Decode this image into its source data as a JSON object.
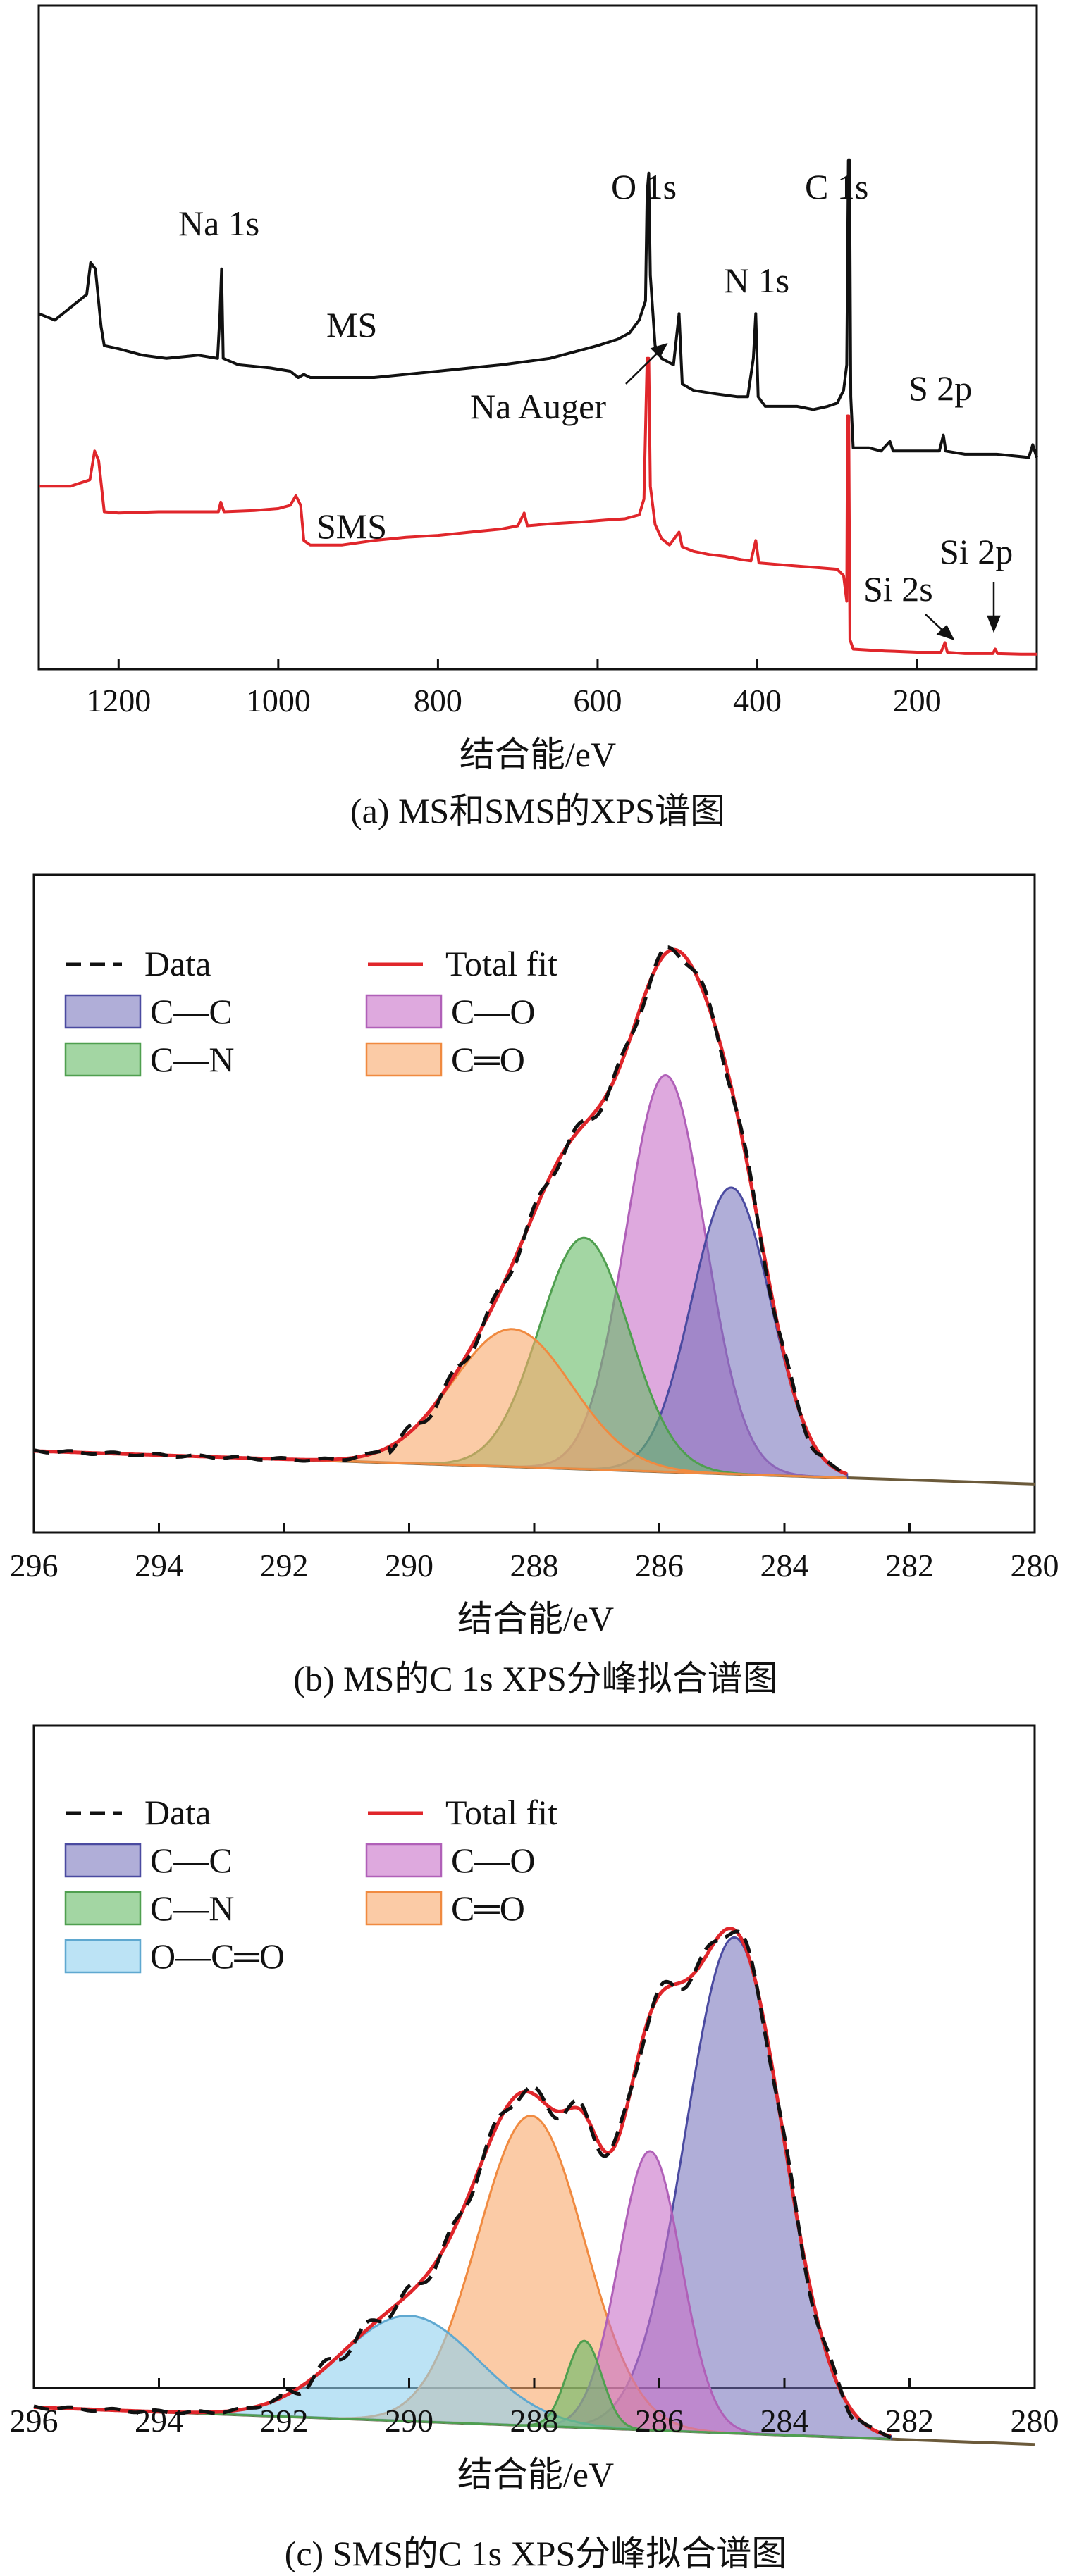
{
  "chart_data": [
    {
      "id": "a",
      "type": "line",
      "caption": "(a) MS和SMS的XPS谱图",
      "xlabel": "结合能/eV",
      "xlim": [
        1300,
        50
      ],
      "xticks": [
        1200,
        1000,
        800,
        600,
        400,
        200
      ],
      "series": [
        {
          "name": "MS",
          "color": "#111111",
          "points": [
            [
              1300,
              38
            ],
            [
              1280,
              37
            ],
            [
              1260,
              39
            ],
            [
              1240,
              41
            ],
            [
              1235,
              46
            ],
            [
              1229,
              45
            ],
            [
              1222,
              36
            ],
            [
              1218,
              33
            ],
            [
              1200,
              32.5
            ],
            [
              1170,
              31.5
            ],
            [
              1140,
              31
            ],
            [
              1100,
              31.5
            ],
            [
              1076,
              31
            ],
            [
              1073,
              38
            ],
            [
              1071,
              45
            ],
            [
              1069,
              31
            ],
            [
              1050,
              30
            ],
            [
              1010,
              29.5
            ],
            [
              985,
              29
            ],
            [
              975,
              28
            ],
            [
              968,
              28.5
            ],
            [
              960,
              28
            ],
            [
              920,
              28
            ],
            [
              880,
              28
            ],
            [
              840,
              28.5
            ],
            [
              800,
              29
            ],
            [
              760,
              29.5
            ],
            [
              720,
              30
            ],
            [
              690,
              30.5
            ],
            [
              660,
              31
            ],
            [
              630,
              32
            ],
            [
              600,
              33
            ],
            [
              575,
              34
            ],
            [
              560,
              35
            ],
            [
              548,
              37
            ],
            [
              540,
              40
            ],
            [
              538,
              57
            ],
            [
              536,
              60
            ],
            [
              534,
              44
            ],
            [
              528,
              33
            ],
            [
              520,
              31
            ],
            [
              505,
              30
            ],
            [
              498,
              38
            ],
            [
              494,
              27
            ],
            [
              480,
              26
            ],
            [
              455,
              25.5
            ],
            [
              425,
              25
            ],
            [
              412,
              25
            ],
            [
              405,
              31
            ],
            [
              402,
              38
            ],
            [
              399,
              25
            ],
            [
              390,
              23.5
            ],
            [
              370,
              23.5
            ],
            [
              350,
              23.5
            ],
            [
              330,
              23
            ],
            [
              312,
              23.5
            ],
            [
              300,
              24
            ],
            [
              292,
              26
            ],
            [
              288,
              30
            ],
            [
              286,
              62
            ],
            [
              284.5,
              62
            ],
            [
              283,
              25
            ],
            [
              280,
              17
            ],
            [
              260,
              17
            ],
            [
              245,
              16.5
            ],
            [
              234,
              18
            ],
            [
              230,
              16.5
            ],
            [
              200,
              16.5
            ],
            [
              172,
              16.5
            ],
            [
              167,
              19
            ],
            [
              164,
              16.5
            ],
            [
              140,
              16
            ],
            [
              100,
              16
            ],
            [
              60,
              15.5
            ],
            [
              55,
              17.5
            ],
            [
              50,
              15.5
            ]
          ]
        },
        {
          "name": "SMS",
          "color": "#e0262b",
          "points": [
            [
              1300,
              11
            ],
            [
              1260,
              11
            ],
            [
              1236,
              12
            ],
            [
              1230,
              16.5
            ],
            [
              1225,
              15
            ],
            [
              1218,
              7
            ],
            [
              1200,
              6.8
            ],
            [
              1150,
              7
            ],
            [
              1100,
              7
            ],
            [
              1075,
              7
            ],
            [
              1072,
              8.5
            ],
            [
              1068,
              7
            ],
            [
              1030,
              7.2
            ],
            [
              1000,
              7.5
            ],
            [
              985,
              8
            ],
            [
              978,
              9.5
            ],
            [
              972,
              8
            ],
            [
              968,
              2.5
            ],
            [
              960,
              1.8
            ],
            [
              920,
              1.8
            ],
            [
              880,
              2.5
            ],
            [
              840,
              3
            ],
            [
              800,
              3.3
            ],
            [
              760,
              3.8
            ],
            [
              720,
              4.3
            ],
            [
              700,
              4.8
            ],
            [
              692,
              6.8
            ],
            [
              688,
              4.8
            ],
            [
              660,
              5.1
            ],
            [
              620,
              5.4
            ],
            [
              590,
              5.7
            ],
            [
              566,
              5.9
            ],
            [
              548,
              6.5
            ],
            [
              542,
              9
            ],
            [
              538,
              31
            ],
            [
              536,
              31
            ],
            [
              534,
              11
            ],
            [
              528,
              5
            ],
            [
              520,
              2.8
            ],
            [
              510,
              1.8
            ],
            [
              498,
              3.8
            ],
            [
              494,
              1.5
            ],
            [
              480,
              0.8
            ],
            [
              460,
              0.3
            ],
            [
              440,
              0
            ],
            [
              420,
              -0.5
            ],
            [
              408,
              -0.7
            ],
            [
              402,
              2.5
            ],
            [
              398,
              -1
            ],
            [
              380,
              -1.2
            ],
            [
              350,
              -1.5
            ],
            [
              320,
              -1.8
            ],
            [
              300,
              -2
            ],
            [
              292,
              -3
            ],
            [
              288,
              -7
            ],
            [
              287,
              22
            ],
            [
              285.5,
              22
            ],
            [
              284,
              -13
            ],
            [
              280,
              -14.5
            ],
            [
              240,
              -14.8
            ],
            [
              200,
              -15
            ],
            [
              170,
              -15
            ],
            [
              165,
              -13.5
            ],
            [
              162,
              -15
            ],
            [
              140,
              -15.2
            ],
            [
              105,
              -15.2
            ],
            [
              102,
              -14.5
            ],
            [
              99,
              -15.2
            ],
            [
              70,
              -15.3
            ],
            [
              50,
              -15.3
            ]
          ]
        }
      ],
      "annotations": [
        "Na 1s",
        "MS",
        "O 1s",
        "C 1s",
        "N 1s",
        "Na Auger",
        "S 2p",
        "SMS",
        "Si 2p",
        "Si 2s"
      ]
    },
    {
      "id": "b",
      "type": "area",
      "caption": "(b) MS的C 1s XPS分峰拟合谱图",
      "xlabel": "结合能/eV",
      "xlim": [
        296,
        280
      ],
      "xticks": [
        296,
        294,
        292,
        290,
        288,
        286,
        284,
        282,
        280
      ],
      "ylim": [
        0,
        1.05
      ],
      "baseline": {
        "start": [
          296,
          0.05
        ],
        "end": [
          280,
          -0.01
        ]
      },
      "fit_range": [
        283.0,
        296
      ],
      "components": [
        {
          "name": "C—C",
          "center": 284.85,
          "height": 0.52,
          "sigma": 0.63,
          "fill": "#6f6bb8",
          "fillOpacity": 0.55,
          "stroke": "#4a4aa0"
        },
        {
          "name": "C—O",
          "center": 285.9,
          "height": 0.72,
          "sigma": 0.63,
          "fill": "#c870c8",
          "fillOpacity": 0.6,
          "stroke": "#b060b8"
        },
        {
          "name": "C—N",
          "center": 287.2,
          "height": 0.42,
          "sigma": 0.72,
          "fill": "#66bb66",
          "fillOpacity": 0.6,
          "stroke": "#4f9f4f"
        },
        {
          "name": "C═O",
          "center": 288.35,
          "height": 0.25,
          "sigma": 0.95,
          "fill": "#f8a86a",
          "fillOpacity": 0.6,
          "stroke": "#f08a40"
        }
      ],
      "legend": {
        "data": "Data",
        "total": "Total fit",
        "items": [
          "C—C",
          "C—O",
          "C—N",
          "C═O"
        ]
      }
    },
    {
      "id": "c",
      "type": "area",
      "caption": "(c) SMS的C 1s XPS分峰拟合谱图",
      "xlabel": "结合能/eV",
      "xlim": [
        296,
        280
      ],
      "xticks": [
        296,
        294,
        292,
        290,
        288,
        286,
        284,
        282,
        280
      ],
      "ylim": [
        0,
        1.05
      ],
      "baseline": {
        "start": [
          296,
          0.02
        ],
        "end": [
          280,
          -0.04
        ]
      },
      "fit_range": [
        282.3,
        296
      ],
      "components": [
        {
          "name": "C—C",
          "center": 284.8,
          "height": 0.8,
          "sigma": 0.78,
          "fill": "#6f6bb8",
          "fillOpacity": 0.55,
          "stroke": "#4a4aa0"
        },
        {
          "name": "C—O",
          "center": 286.15,
          "height": 0.45,
          "sigma": 0.5,
          "fill": "#c870c8",
          "fillOpacity": 0.6,
          "stroke": "#b060b8"
        },
        {
          "name": "C—N",
          "center": 287.2,
          "height": 0.14,
          "sigma": 0.28,
          "fill": "#66bb66",
          "fillOpacity": 0.6,
          "stroke": "#4f9f4f"
        },
        {
          "name": "C═O",
          "center": 288.05,
          "height": 0.5,
          "sigma": 0.85,
          "fill": "#f8a86a",
          "fillOpacity": 0.6,
          "stroke": "#f08a40"
        },
        {
          "name": "O—C═O",
          "center": 290.0,
          "height": 0.17,
          "sigma": 1.1,
          "fill": "#8fd0ee",
          "fillOpacity": 0.6,
          "stroke": "#5fa8d0"
        }
      ],
      "legend": {
        "data": "Data",
        "total": "Total fit",
        "items": [
          "C—C",
          "C—O",
          "C—N",
          "C═O",
          "O—C═O"
        ]
      }
    }
  ]
}
